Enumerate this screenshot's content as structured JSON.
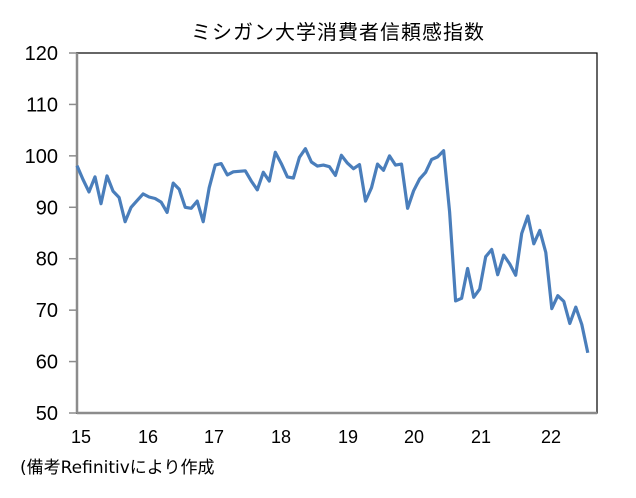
{
  "chart_data": {
    "type": "line",
    "title": "ミシガン大学消費者信頼感指数",
    "xlabel": "",
    "ylabel": "",
    "ylim": [
      50,
      120
    ],
    "yticks": [
      50,
      60,
      70,
      80,
      90,
      100,
      110,
      120
    ],
    "xtick_labels": [
      "15",
      "16",
      "17",
      "18",
      "19",
      "20",
      "21",
      "22"
    ],
    "grid": false,
    "legend": null,
    "frequency": "monthly",
    "start": "2015-01",
    "end": "2022-02",
    "series": [
      {
        "name": "ミシガン大学消費者信頼感指数",
        "color": "#4a7ebb",
        "values": [
          98.1,
          95.4,
          93.0,
          95.9,
          90.7,
          96.1,
          93.1,
          91.9,
          87.2,
          90.0,
          91.3,
          92.6,
          92.0,
          91.7,
          91.0,
          89.0,
          94.7,
          93.5,
          90.0,
          89.8,
          91.2,
          87.2,
          93.8,
          98.2,
          98.5,
          96.3,
          96.9,
          97.0,
          97.1,
          95.1,
          93.4,
          96.8,
          95.1,
          100.7,
          98.5,
          95.9,
          95.7,
          99.7,
          101.4,
          98.8,
          98.0,
          98.2,
          97.9,
          96.2,
          100.1,
          98.6,
          97.5,
          98.3,
          91.2,
          93.8,
          98.4,
          97.2,
          100.0,
          98.2,
          98.4,
          89.8,
          93.2,
          95.5,
          96.8,
          99.3,
          99.8,
          101.0,
          89.1,
          71.8,
          72.3,
          78.1,
          72.5,
          74.1,
          80.4,
          81.8,
          76.9,
          80.7,
          79.0,
          76.8,
          84.9,
          88.3,
          82.9,
          85.5,
          81.2,
          70.3,
          72.8,
          71.7,
          67.4,
          70.6,
          67.2,
          61.7
        ]
      }
    ]
  },
  "note": "(備考Refinitivにより作成"
}
